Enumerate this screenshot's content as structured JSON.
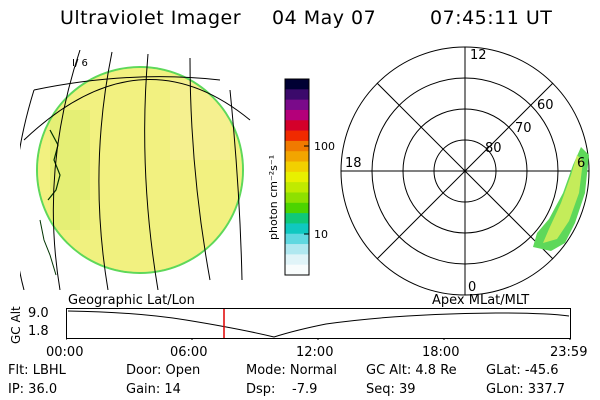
{
  "header": {
    "instrument": "Ultraviolet Imager",
    "date": "04 May 07",
    "time": "07:45:11 UT"
  },
  "geo_panel": {
    "grid_label": "I/ 6"
  },
  "colorbar": {
    "unit_label": "photon cm⁻²s⁻¹",
    "ticks": [
      "100",
      "10"
    ],
    "scale": "log",
    "colors": [
      "#000033",
      "#3b0a6b",
      "#7a0a8a",
      "#b4007a",
      "#d4002a",
      "#f02a00",
      "#f07a00",
      "#f2a500",
      "#f2d000",
      "#e8f000",
      "#c0ea00",
      "#8ee000",
      "#4cd400",
      "#10c878",
      "#10c8c0",
      "#60d8e0",
      "#b0e8f0",
      "#e0f4f8",
      "#f8fcfc"
    ]
  },
  "polar_plot": {
    "mlt_labels": [
      "12",
      "6",
      "0",
      "18"
    ],
    "mlat_labels": [
      "60",
      "70",
      "80"
    ]
  },
  "timeline": {
    "left_label": "Geographic Lat/Lon",
    "right_label": "Apex MLat/MLT",
    "axis_title": "GC Alt",
    "y_ticks": [
      "9.0",
      "1.8"
    ],
    "x_ticks": [
      "00:00",
      "06:00",
      "12:00",
      "18:00",
      "23:59"
    ],
    "marker_color": "#e00000"
  },
  "status": {
    "filter": "Flt: LBHL",
    "door": "Door: Open",
    "mode": "Mode: Normal",
    "gc_alt": "GC Alt: 4.8 Re",
    "glat": "GLat: -45.6",
    "ip": "IP: 36.0",
    "gain": "Gain: 14",
    "dsp_label": "Dsp:",
    "dsp_value": "-7.9",
    "seq": "Seq: 39",
    "glon": "GLon: 337.7"
  }
}
